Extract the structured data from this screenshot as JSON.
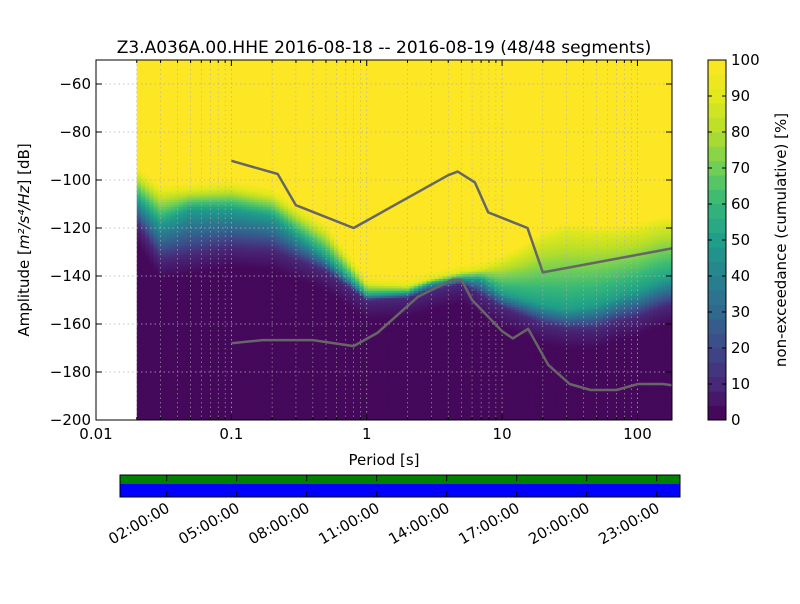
{
  "chart_data": {
    "type": "heatmap",
    "title": "Z3.A036A.00.HHE   2016-08-18 -- 2016-08-19  (48/48 segments)",
    "xlabel": "Period [s]",
    "ylabel_prefix": "Amplitude [",
    "ylabel_units": "m²/s⁴/Hz",
    "ylabel_suffix": "] [dB]",
    "xscale": "log",
    "xlim": [
      0.01,
      180
    ],
    "ylim": [
      -200,
      -50
    ],
    "xticks": [
      {
        "value": 0.01,
        "label": "0.01"
      },
      {
        "value": 0.1,
        "label": "0.1"
      },
      {
        "value": 1,
        "label": "1"
      },
      {
        "value": 10,
        "label": "10"
      },
      {
        "value": 100,
        "label": "100"
      }
    ],
    "yticks": [
      {
        "value": -60,
        "label": "−60"
      },
      {
        "value": -80,
        "label": "−80"
      },
      {
        "value": -100,
        "label": "−100"
      },
      {
        "value": -120,
        "label": "−120"
      },
      {
        "value": -140,
        "label": "−140"
      },
      {
        "value": -160,
        "label": "−160"
      },
      {
        "value": -180,
        "label": "−180"
      },
      {
        "value": -200,
        "label": "−200"
      }
    ],
    "grid": true,
    "data_min_period": 0.02,
    "psd_envelope": {
      "period": [
        0.02,
        0.03,
        0.05,
        0.1,
        0.2,
        0.5,
        1,
        2,
        3,
        5,
        7,
        10,
        15,
        20,
        30,
        50,
        70,
        100,
        150,
        180
      ],
      "p10": [
        -118,
        -133,
        -131,
        -128,
        -129,
        -138,
        -150,
        -149,
        -146,
        -143,
        -148,
        -153,
        -157,
        -160,
        -162,
        -162,
        -159,
        -157,
        -153,
        -152
      ],
      "p50": [
        -108,
        -118,
        -112,
        -112,
        -115,
        -132,
        -148,
        -147,
        -143,
        -141,
        -141,
        -147,
        -150,
        -152,
        -154,
        -152,
        -149,
        -146,
        -142,
        -141
      ],
      "p90": [
        -97,
        -105,
        -104,
        -103,
        -106,
        -121,
        -143,
        -144,
        -141,
        -138,
        -137,
        -134,
        -129,
        -124,
        -121,
        -122,
        -122,
        -121,
        -118,
        -118
      ]
    },
    "model_curves": [
      {
        "period": [
          0.1,
          0.22,
          0.3,
          0.8,
          4,
          4.7,
          6.3,
          7.9,
          15.4,
          20,
          180
        ],
        "db": [
          -92,
          -97.5,
          -110.5,
          -120,
          -98,
          -96.5,
          -101,
          -113.5,
          -120,
          -138.5,
          -128.5
        ]
      },
      {
        "period": [
          0.1,
          0.17,
          0.4,
          0.8,
          1.2,
          2.4,
          4.3,
          5,
          6,
          10,
          12,
          15.6,
          21.9,
          31.6,
          45,
          70,
          101,
          154,
          180
        ],
        "db": [
          -168,
          -166.7,
          -166.7,
          -169.2,
          -163.7,
          -148.6,
          -141.5,
          -141.5,
          -150,
          -163,
          -166,
          -162,
          -177,
          -185,
          -187.5,
          -187.5,
          -185,
          -185,
          -185.5
        ]
      }
    ],
    "colorbar": {
      "label": "non-exceedance (cumulative) [%]",
      "min": 0,
      "max": 100,
      "ticks": [
        0,
        10,
        20,
        30,
        40,
        50,
        60,
        70,
        80,
        90,
        100
      ]
    },
    "timeline": {
      "tick_labels": [
        "02:00:00",
        "05:00:00",
        "08:00:00",
        "11:00:00",
        "14:00:00",
        "17:00:00",
        "20:00:00",
        "23:00:00"
      ],
      "segment_count": 48,
      "colors": {
        "top": "#008000",
        "bottom": "#0000ff"
      }
    }
  }
}
